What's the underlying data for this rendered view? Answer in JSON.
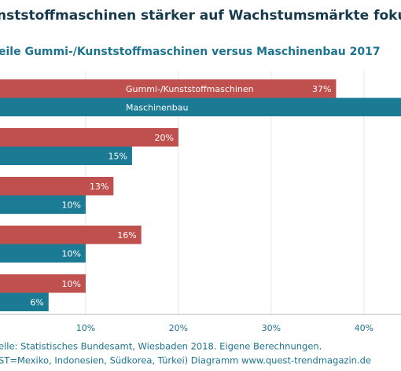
{
  "chart_data": {
    "type": "hbar",
    "title": "nststoffmaschinen stärker auf Wachstumsmärkte fokussier",
    "subtitle": "eile  Gummi-/Kunststoffmaschinen versus Maschinenbau 2017",
    "categories": [
      null,
      null,
      null,
      null,
      null
    ],
    "series": [
      {
        "name": "Gummi-/Kunststoffmaschinen",
        "color": "#c0504d",
        "values": [
          37,
          20,
          13,
          16,
          10
        ],
        "value_labels": [
          "37%",
          "20%",
          "13%",
          "16%",
          "10%"
        ]
      },
      {
        "name": "Maschinenbau",
        "color": "#1b7a94",
        "values": [
          45,
          15,
          10,
          10,
          6
        ],
        "value_labels": [
          null,
          "15%",
          "10%",
          "10%",
          "6%"
        ]
      }
    ],
    "xlim": [
      0,
      44
    ],
    "xticks": [
      {
        "value": 10,
        "label": "10%"
      },
      {
        "value": 20,
        "label": "20%"
      },
      {
        "value": 30,
        "label": "30%"
      },
      {
        "value": 40,
        "label": "40%"
      }
    ],
    "grid": true,
    "source": [
      "elle: Statistisches Bundesamt, Wiesbaden 2018. Eigene Berechnungen.",
      "ST=Mexiko, Indonesien, Südkorea, Türkei) Diagramm www.quest-trendmagazin.de"
    ]
  }
}
